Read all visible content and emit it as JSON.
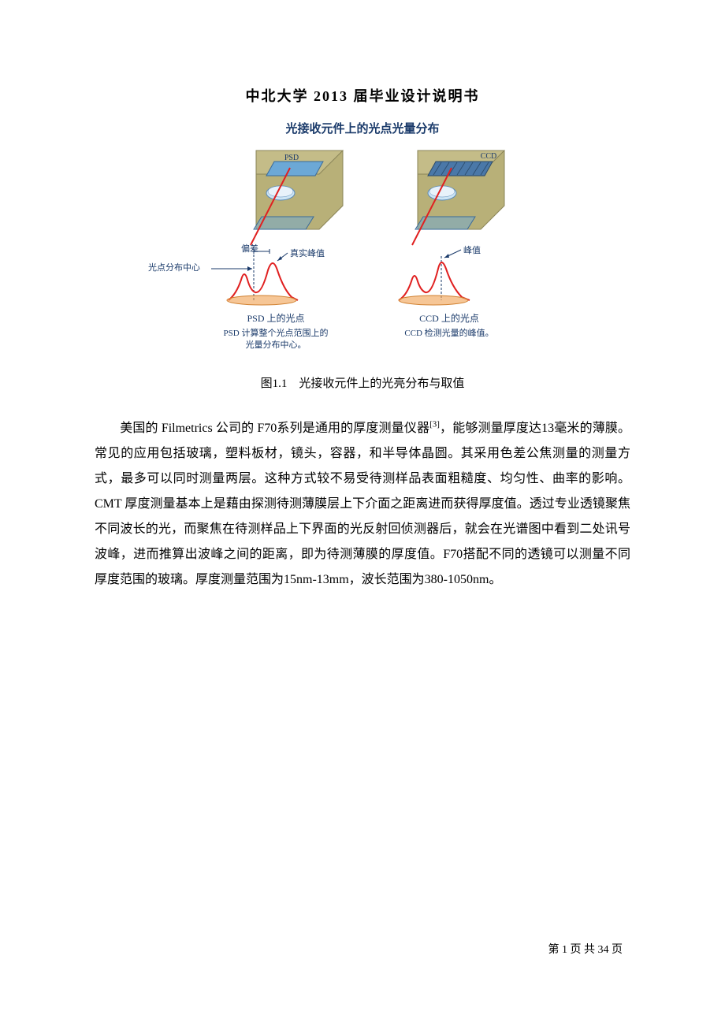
{
  "header": {
    "title": "中北大学 2013 届毕业设计说明书"
  },
  "diagram": {
    "title": "光接收元件上的光点光量分布",
    "colors": {
      "title_text": "#1a3a6a",
      "sensor_body": "#b8b078",
      "sensor_body_stroke": "#8a8458",
      "chip": "#6ca8d6",
      "chip_stroke": "#3a6a9a",
      "lens_fill": "#cde5f5",
      "lens_stroke": "#5a8ab8",
      "beam": "#e02020",
      "curve": "#e02020",
      "beam_spot": "#f0a050",
      "grid_arrow": "#1a3a6a",
      "label_text": "#1a3a6a"
    },
    "panels": [
      {
        "id": "psd",
        "chip_label": "PSD",
        "annotations": {
          "deviation": "偏差",
          "true_peak": "真实峰值",
          "center": "光点分布中心"
        },
        "curve_label": "PSD 上的光点",
        "caption_line1": "PSD 计算整个光点范围上的",
        "caption_line2": "光量分布中心。"
      },
      {
        "id": "ccd",
        "chip_label": "CCD",
        "annotations": {
          "peak": "峰值"
        },
        "curve_label": "CCD 上的光点",
        "caption_line1": "CCD 检测光量的峰值。",
        "caption_line2": ""
      }
    ]
  },
  "figure_caption": "图1.1　光接收元件上的光亮分布与取值",
  "body": {
    "paragraph": "　　美国的 Filmetrics 公司的 F70系列是通用的厚度测量仪器[3]，能够测量厚度达13毫米的薄膜。常见的应用包括玻璃，塑料板材，镜头，容器，和半导体晶圆。其采用色差公焦测量的测量方式，最多可以同时测量两层。这种方式较不易受待测样品表面粗糙度、均匀性、曲率的影响。CMT 厚度测量基本上是藉由探测待测薄膜层上下介面之距离进而获得厚度值。透过专业透镜聚焦不同波长的光，而聚焦在待测样品上下界面的光反射回侦测器后，就会在光谱图中看到二处讯号波峰，进而推算出波峰之间的距离，即为待测薄膜的厚度值。F70搭配不同的透镜可以测量不同厚度范围的玻璃。厚度测量范围为15nm-13mm，波长范围为380-1050nm。",
    "superscript_marker": "[3]"
  },
  "footer": {
    "text": "第 1 页 共 34 页"
  }
}
